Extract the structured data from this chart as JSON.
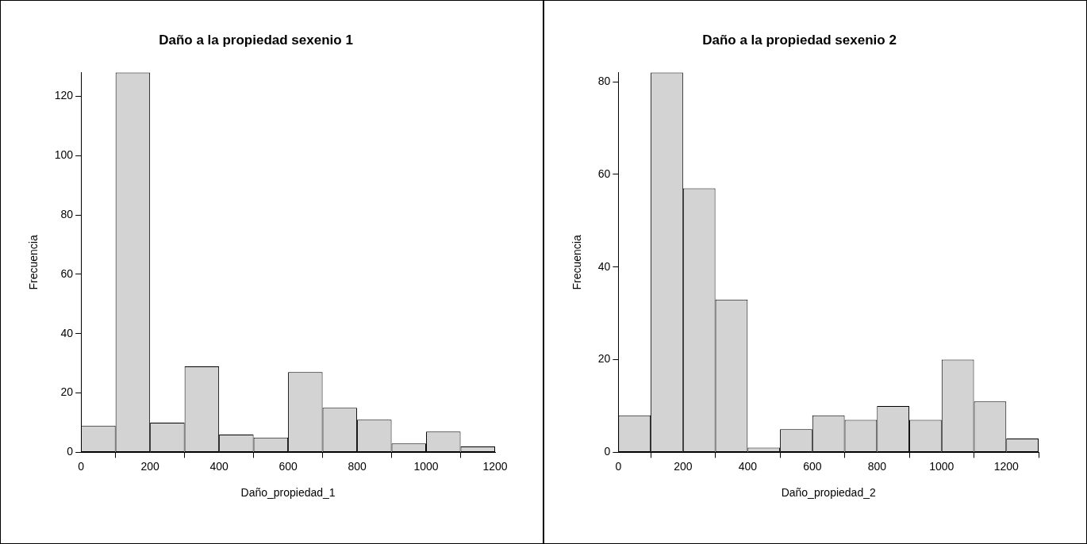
{
  "chart_data": [
    {
      "type": "histogram",
      "title": "Daño a la propiedad sexenio 1",
      "xlabel": "Daño_propiedad_1",
      "ylabel": "Frecuencia",
      "bins": [
        0,
        100,
        200,
        300,
        400,
        500,
        600,
        700,
        800,
        900,
        1000,
        1100,
        1200
      ],
      "values": [
        9,
        128,
        10,
        29,
        6,
        5,
        27,
        15,
        11,
        3,
        7,
        2
      ],
      "color": "#d3d3d3",
      "xlim": [
        0,
        1200
      ],
      "xticks": [
        0,
        200,
        400,
        600,
        800,
        1000,
        1200
      ],
      "ylim": [
        0,
        128
      ],
      "yticks": [
        0,
        20,
        40,
        60,
        80,
        100,
        120
      ],
      "grid": false
    },
    {
      "type": "histogram",
      "title": "Daño a la propiedad sexenio 2",
      "xlabel": "Daño_propiedad_2",
      "ylabel": "Frecuencia",
      "bins": [
        0,
        100,
        200,
        300,
        400,
        500,
        600,
        700,
        800,
        900,
        1000,
        1100,
        1200,
        1300
      ],
      "values": [
        8,
        82,
        57,
        33,
        1,
        5,
        8,
        7,
        10,
        7,
        20,
        11,
        3
      ],
      "color": "#d3d3d3",
      "xlim": [
        0,
        1300
      ],
      "xticks": [
        0,
        200,
        400,
        600,
        800,
        1000,
        1200
      ],
      "ylim": [
        0,
        82
      ],
      "yticks": [
        0,
        20,
        40,
        60,
        80
      ],
      "grid": false
    }
  ]
}
